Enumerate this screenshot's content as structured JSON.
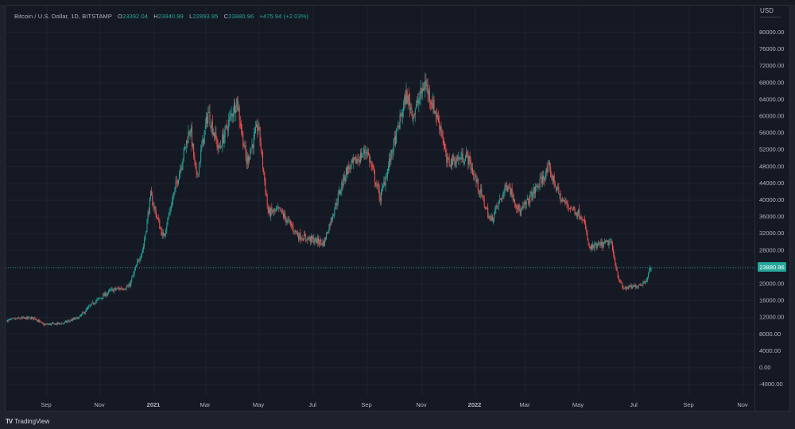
{
  "legend": {
    "symbol": "Bitcoin / U.S. Dollar, 1D, BITSTAMP",
    "open_label": "O",
    "open": "23392.04",
    "high_label": "H",
    "high": "23940.99",
    "low_label": "L",
    "low": "22893.95",
    "close_label": "C",
    "close": "23880.96",
    "change": "+475.94 (+2.03%)"
  },
  "price_axis": {
    "currency": "USD",
    "current_price_label": "23880.96",
    "current_price_color": "#26a69a"
  },
  "footer": {
    "brand": "TradingView",
    "logo_icon": "tradingview-logo-icon"
  },
  "colors": {
    "up": "#26a69a",
    "down": "#ef5350",
    "background": "#151924",
    "grid": "#1f2330"
  },
  "chart_data": {
    "type": "candlestick",
    "title": "Bitcoin / U.S. Dollar, 1D, BITSTAMP",
    "xlabel": "",
    "ylabel": "USD",
    "ylim": [
      -6000,
      82000
    ],
    "grid": true,
    "legend_position": "top-left",
    "x_ticks": [
      {
        "label": "Sep",
        "x": 58
      },
      {
        "label": "Nov",
        "x": 125
      },
      {
        "label": "2021",
        "x": 193
      },
      {
        "label": "Mar",
        "x": 258
      },
      {
        "label": "May",
        "x": 325
      },
      {
        "label": "Jul",
        "x": 393
      },
      {
        "label": "Sep",
        "x": 461
      },
      {
        "label": "Nov",
        "x": 530
      },
      {
        "label": "2022",
        "x": 597
      },
      {
        "label": "Mar",
        "x": 660
      },
      {
        "label": "May",
        "x": 727
      },
      {
        "label": "Jul",
        "x": 797
      },
      {
        "label": "Sep",
        "x": 866
      },
      {
        "label": "Nov",
        "x": 934
      }
    ],
    "y_ticks": [
      "80000.00",
      "76000.00",
      "72000.00",
      "68000.00",
      "64000.00",
      "60000.00",
      "56000.00",
      "52000.00",
      "48000.00",
      "44000.00",
      "40000.00",
      "36000.00",
      "32000.00",
      "28000.00",
      "24000.00",
      "20000.00",
      "16000.00",
      "12000.00",
      "8000.00",
      "4000.00",
      "0.00",
      "-4000.00"
    ],
    "y_tick_values": [
      80000,
      76000,
      72000,
      68000,
      64000,
      60000,
      56000,
      52000,
      48000,
      44000,
      40000,
      36000,
      32000,
      28000,
      24000,
      20000,
      16000,
      12000,
      8000,
      4000,
      0,
      -4000
    ],
    "current_price": 23880.96,
    "last_bar": {
      "open": 23392.04,
      "high": 23940.99,
      "low": 22893.95,
      "close": 23880.96,
      "change": 475.94,
      "change_pct": 2.03
    },
    "approx_close_path": [
      {
        "date": "2020-08-01",
        "close": 11300
      },
      {
        "date": "2020-08-15",
        "close": 11800
      },
      {
        "date": "2020-09-01",
        "close": 11900
      },
      {
        "date": "2020-09-10",
        "close": 10300
      },
      {
        "date": "2020-10-01",
        "close": 10600
      },
      {
        "date": "2020-10-20",
        "close": 12000
      },
      {
        "date": "2020-11-05",
        "close": 15500
      },
      {
        "date": "2020-11-25",
        "close": 18500
      },
      {
        "date": "2020-12-15",
        "close": 19400
      },
      {
        "date": "2020-12-31",
        "close": 29000
      },
      {
        "date": "2021-01-08",
        "close": 41000
      },
      {
        "date": "2021-01-22",
        "close": 31000
      },
      {
        "date": "2021-02-08",
        "close": 46000
      },
      {
        "date": "2021-02-21",
        "close": 57500
      },
      {
        "date": "2021-02-28",
        "close": 45200
      },
      {
        "date": "2021-03-13",
        "close": 61000
      },
      {
        "date": "2021-03-25",
        "close": 52000
      },
      {
        "date": "2021-04-14",
        "close": 64000
      },
      {
        "date": "2021-04-25",
        "close": 49000
      },
      {
        "date": "2021-05-08",
        "close": 58000
      },
      {
        "date": "2021-05-19",
        "close": 37000
      },
      {
        "date": "2021-06-01",
        "close": 37500
      },
      {
        "date": "2021-06-22",
        "close": 31500
      },
      {
        "date": "2021-07-20",
        "close": 29800
      },
      {
        "date": "2021-08-14",
        "close": 47000
      },
      {
        "date": "2021-09-06",
        "close": 52000
      },
      {
        "date": "2021-09-21",
        "close": 40500
      },
      {
        "date": "2021-10-20",
        "close": 65000
      },
      {
        "date": "2021-10-28",
        "close": 60500
      },
      {
        "date": "2021-11-10",
        "close": 68000
      },
      {
        "date": "2021-11-28",
        "close": 57000
      },
      {
        "date": "2021-12-04",
        "close": 49000
      },
      {
        "date": "2021-12-27",
        "close": 50500
      },
      {
        "date": "2022-01-22",
        "close": 35000
      },
      {
        "date": "2022-02-10",
        "close": 44000
      },
      {
        "date": "2022-02-24",
        "close": 37000
      },
      {
        "date": "2022-03-28",
        "close": 47500
      },
      {
        "date": "2022-04-11",
        "close": 40000
      },
      {
        "date": "2022-05-05",
        "close": 36000
      },
      {
        "date": "2022-05-12",
        "close": 28500
      },
      {
        "date": "2022-06-05",
        "close": 30000
      },
      {
        "date": "2022-06-13",
        "close": 22000
      },
      {
        "date": "2022-06-18",
        "close": 19000
      },
      {
        "date": "2022-07-01",
        "close": 19300
      },
      {
        "date": "2022-07-13",
        "close": 20500
      },
      {
        "date": "2022-07-20",
        "close": 23880
      }
    ]
  }
}
